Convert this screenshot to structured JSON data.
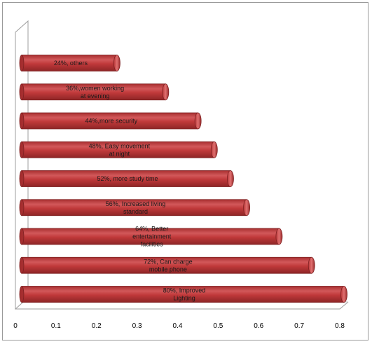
{
  "chart_data": {
    "type": "bar",
    "orientation": "horizontal",
    "title": "",
    "xlabel": "",
    "ylabel": "",
    "xlim": [
      0,
      0.8
    ],
    "xticks": [
      "0",
      "0.1",
      "0.2",
      "0.3",
      "0.4",
      "0.5",
      "0.6",
      "0.7",
      "0.8"
    ],
    "grid": false,
    "legend": "none",
    "bar_color": "#c0393a",
    "bars": [
      {
        "value": 0.24,
        "label": [
          "24%, others"
        ]
      },
      {
        "value": 0.36,
        "label": [
          "36%,women working",
          "at evening"
        ]
      },
      {
        "value": 0.44,
        "label": [
          "44%,more security"
        ]
      },
      {
        "value": 0.48,
        "label": [
          "48%, Easy movement",
          "at night"
        ]
      },
      {
        "value": 0.52,
        "label": [
          "52%, more study time"
        ]
      },
      {
        "value": 0.56,
        "label": [
          "56%, Increased living",
          "standard"
        ]
      },
      {
        "value": 0.64,
        "label": [
          "64%, Better",
          "entertainment",
          "facilities"
        ]
      },
      {
        "value": 0.72,
        "label": [
          "72%, Can charge",
          "mobile phone"
        ]
      },
      {
        "value": 0.8,
        "label": [
          "80%, Improved",
          "Lighting"
        ]
      }
    ]
  }
}
